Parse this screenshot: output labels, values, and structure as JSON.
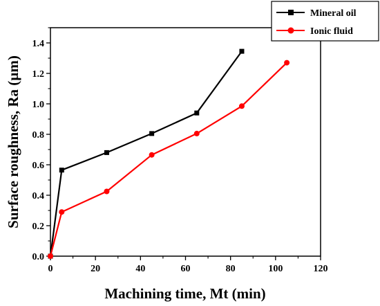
{
  "chart_data": {
    "type": "line",
    "xlabel": "Machining time, Mt (min)",
    "ylabel": "Surface roughness, Ra (µm)",
    "xlim": [
      0,
      120
    ],
    "ylim": [
      0,
      1.5
    ],
    "x_ticks": [
      "0",
      "20",
      "40",
      "60",
      "80",
      "100",
      "120"
    ],
    "y_ticks": [
      "0.0",
      "0.2",
      "0.4",
      "0.6",
      "0.8",
      "1.0",
      "1.2",
      "1.4"
    ],
    "grid": false,
    "legend_position": "top-right",
    "series": [
      {
        "name": "Mineral oil",
        "color": "#000000",
        "marker": "square",
        "x": [
          0,
          5,
          25,
          45,
          65,
          85
        ],
        "y": [
          0.0,
          0.565,
          0.68,
          0.805,
          0.94,
          1.345
        ]
      },
      {
        "name": "Ionic fluid",
        "color": "#ff0000",
        "marker": "circle",
        "x": [
          0,
          5,
          25,
          45,
          65,
          85,
          105
        ],
        "y": [
          0.0,
          0.29,
          0.425,
          0.665,
          0.805,
          0.985,
          1.27
        ]
      }
    ]
  }
}
